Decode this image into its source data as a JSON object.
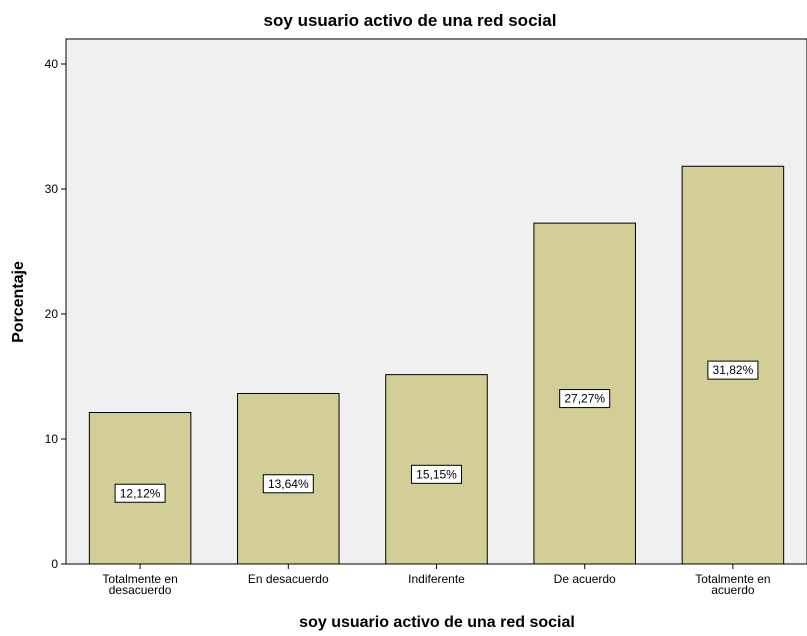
{
  "chart_data": {
    "type": "bar",
    "title": "soy usuario activo de una red social",
    "xlabel": "soy usuario activo de una red social",
    "ylabel": "Porcentaje",
    "categories": [
      [
        "Totalmente en",
        "desacuerdo"
      ],
      [
        "En desacuerdo"
      ],
      [
        "Indiferente"
      ],
      [
        "De acuerdo"
      ],
      [
        "Totalmente en",
        "acuerdo"
      ]
    ],
    "values": [
      12.12,
      13.64,
      15.15,
      27.27,
      31.82
    ],
    "data_labels": [
      "12,12%",
      "13,64%",
      "15,15%",
      "27,27%",
      "31,82%"
    ],
    "yticks": [
      0,
      10,
      20,
      30,
      40
    ],
    "ylim": [
      0,
      42
    ],
    "grid": false,
    "colors": {
      "bar_fill": "#d3cd98",
      "bar_stroke": "#000000",
      "plot_bg": "#f0f0f0",
      "label_box": "#ffffff"
    }
  }
}
